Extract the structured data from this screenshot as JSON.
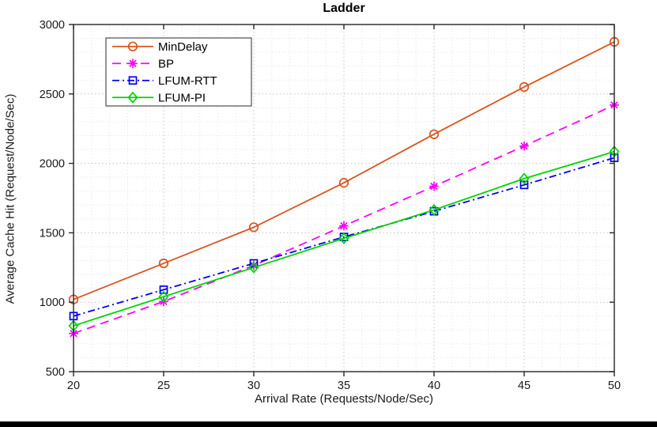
{
  "window": {
    "bottom_bar_color": "#000000",
    "background_color": "#ffffff",
    "axis_color": "#262626"
  },
  "chart_data": {
    "type": "line",
    "title": "Ladder",
    "xlabel": "Arrival Rate (Requests/Node/Sec)",
    "ylabel": "Average Cache Hit (Request/Node/Sec)",
    "xlim": [
      20,
      50
    ],
    "ylim": [
      500,
      3000
    ],
    "xticks": [
      20,
      25,
      30,
      35,
      40,
      45,
      50
    ],
    "yticks": [
      500,
      1000,
      1500,
      2000,
      2500,
      3000
    ],
    "grid": "dotted major and minor gridlines, both axes",
    "minor_step_x": 1,
    "minor_step_y": 100,
    "legend_position": "top-left inside plot",
    "x": [
      20,
      25,
      30,
      35,
      40,
      45,
      50
    ],
    "series": [
      {
        "name": "MinDelay",
        "color": "#d9541e",
        "line": "solid",
        "marker": "circle",
        "values": [
          1020,
          1280,
          1540,
          1860,
          2210,
          2550,
          2875
        ]
      },
      {
        "name": "BP",
        "color": "#ff00ff",
        "line": "dashed",
        "marker": "asterisk",
        "values": [
          775,
          1005,
          1265,
          1550,
          1835,
          2125,
          2420
        ]
      },
      {
        "name": "LFUM-RTT",
        "color": "#0000ee",
        "line": "dashdot",
        "marker": "square",
        "values": [
          900,
          1090,
          1280,
          1470,
          1655,
          1845,
          2040
        ]
      },
      {
        "name": "LFUM-PI",
        "color": "#00d300",
        "line": "solid",
        "marker": "diamond",
        "values": [
          830,
          1040,
          1250,
          1460,
          1665,
          1890,
          2085
        ]
      }
    ]
  }
}
